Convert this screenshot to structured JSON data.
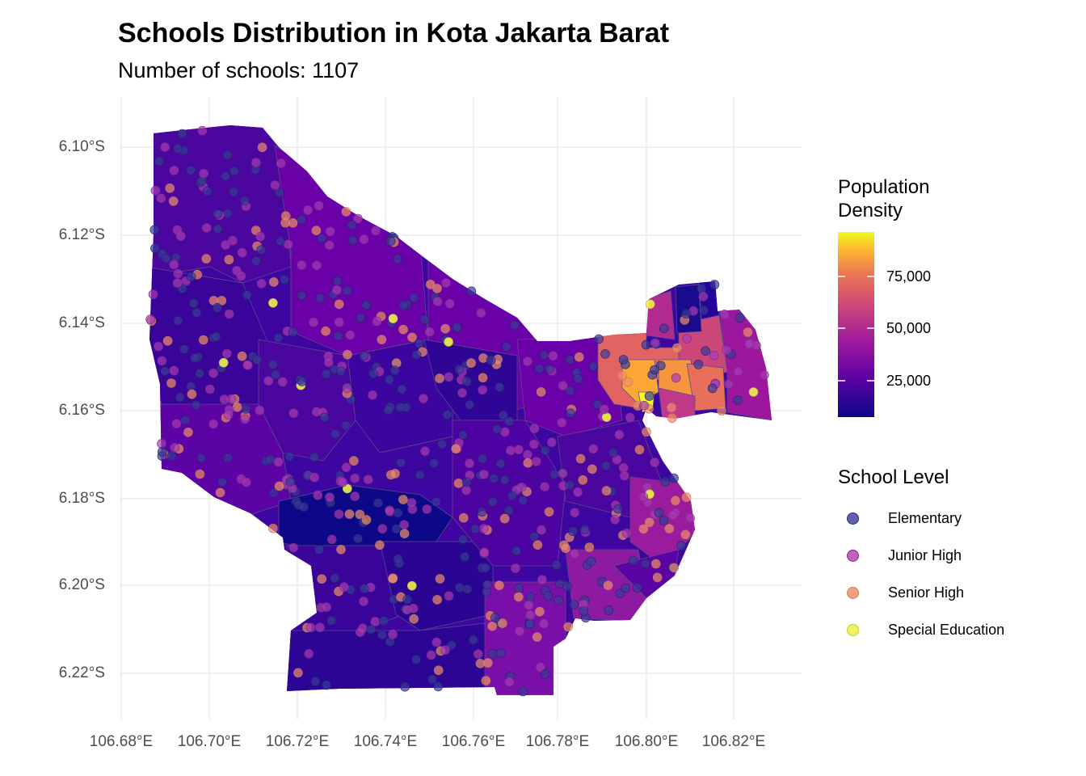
{
  "title": "Schools Distribution in Kota Jakarta Barat",
  "subtitle": "Number of schools: 1107",
  "axes": {
    "y_ticks": [
      "6.10°S",
      "6.12°S",
      "6.14°S",
      "6.16°S",
      "6.18°S",
      "6.20°S",
      "6.22°S"
    ],
    "x_ticks": [
      "106.68°E",
      "106.70°E",
      "106.72°E",
      "106.74°E",
      "106.76°E",
      "106.78°E",
      "106.80°E",
      "106.82°E"
    ]
  },
  "fill_legend": {
    "title_line1": "Population",
    "title_line2": "Density",
    "labels": [
      "75,000",
      "50,000",
      "25,000"
    ],
    "colors": [
      "#0d0887",
      "#6a00a8",
      "#b12a90",
      "#e16462",
      "#fca636",
      "#f0f921"
    ]
  },
  "point_legend": {
    "title": "School Level",
    "items": [
      {
        "label": "Elementary",
        "color": "#3a3a9a"
      },
      {
        "label": "Junior High",
        "color": "#a83cb4"
      },
      {
        "label": "Senior High",
        "color": "#f0906a"
      },
      {
        "label": "Special Education",
        "color": "#eef24e"
      }
    ]
  }
}
